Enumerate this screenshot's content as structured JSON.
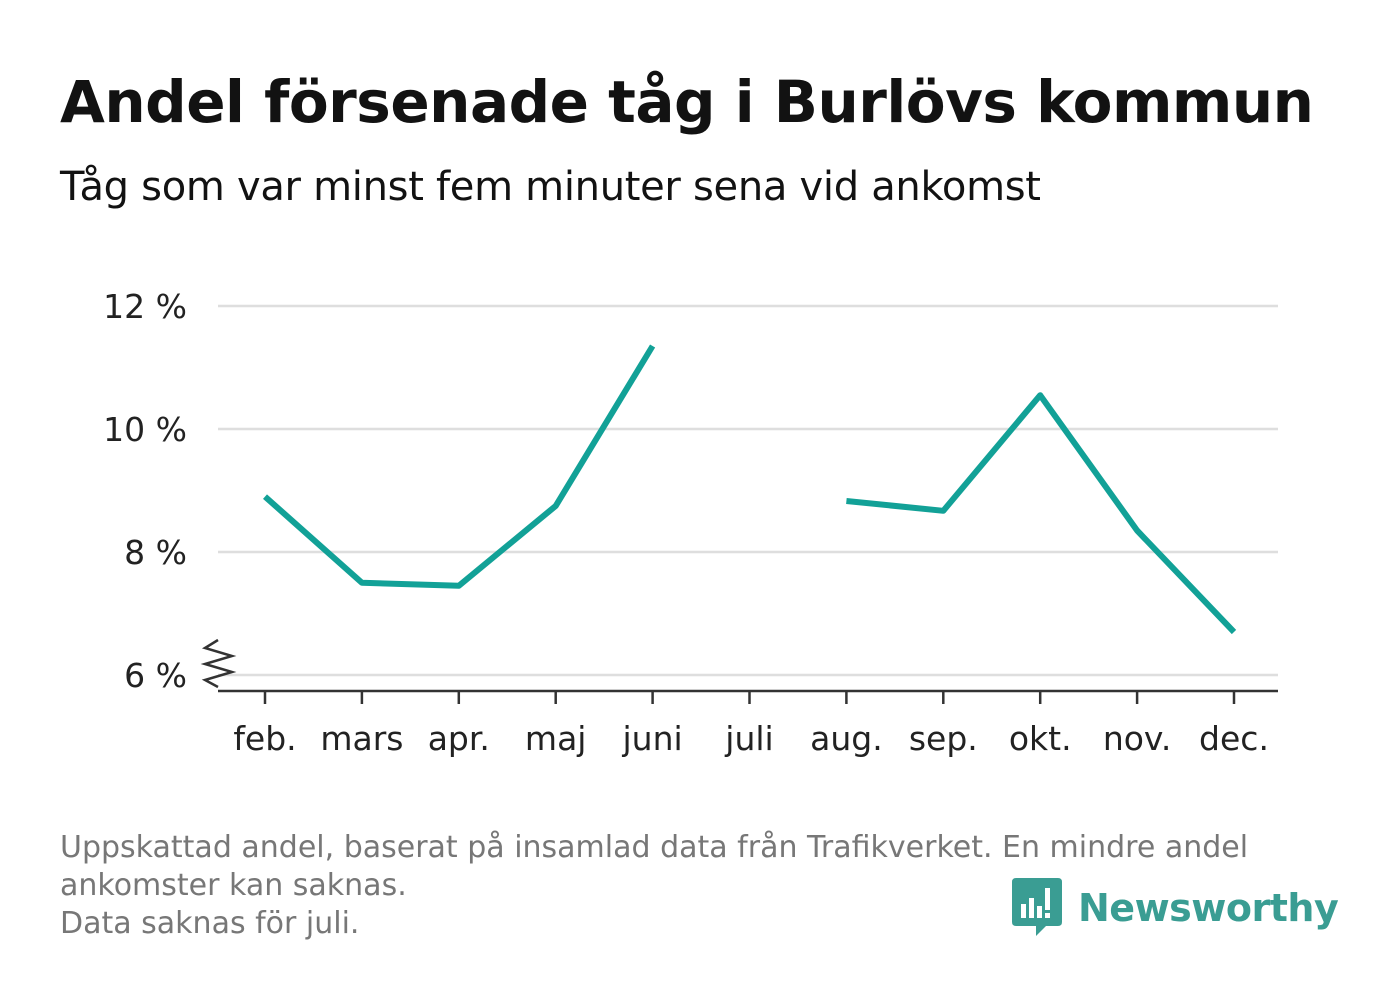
{
  "title": "Andel försenade tåg i Burlövs kommun",
  "subtitle": "Tåg som var minst fem minuter sena vid ankomst",
  "footnote": {
    "line1": "Uppskattad andel, baserat på insamlad data från Trafikverket. En mindre andel",
    "line2": "ankomster kan saknas.",
    "line3": "Data saknas för juli."
  },
  "brand": {
    "name": "Newsworthy",
    "color": "#3a9d93"
  },
  "colors": {
    "line": "#12a197",
    "grid": "#dedede",
    "axis": "#333333"
  },
  "chart_data": {
    "type": "line",
    "categories": [
      "feb.",
      "mars",
      "apr.",
      "maj",
      "juni",
      "juli",
      "aug.",
      "sep.",
      "okt.",
      "nov.",
      "dec."
    ],
    "series": [
      {
        "values": [
          8.9,
          7.5,
          7.45,
          8.75,
          11.35,
          null,
          8.83,
          8.67,
          10.55,
          8.35,
          6.7
        ]
      }
    ],
    "yticks": [
      6,
      8,
      10,
      12
    ],
    "ytick_labels": [
      "6 %",
      "8 %",
      "10 %",
      "12 %"
    ],
    "ylim": [
      6,
      12
    ],
    "y_axis_break": true,
    "grid": true,
    "xlabel": "",
    "ylabel": ""
  }
}
